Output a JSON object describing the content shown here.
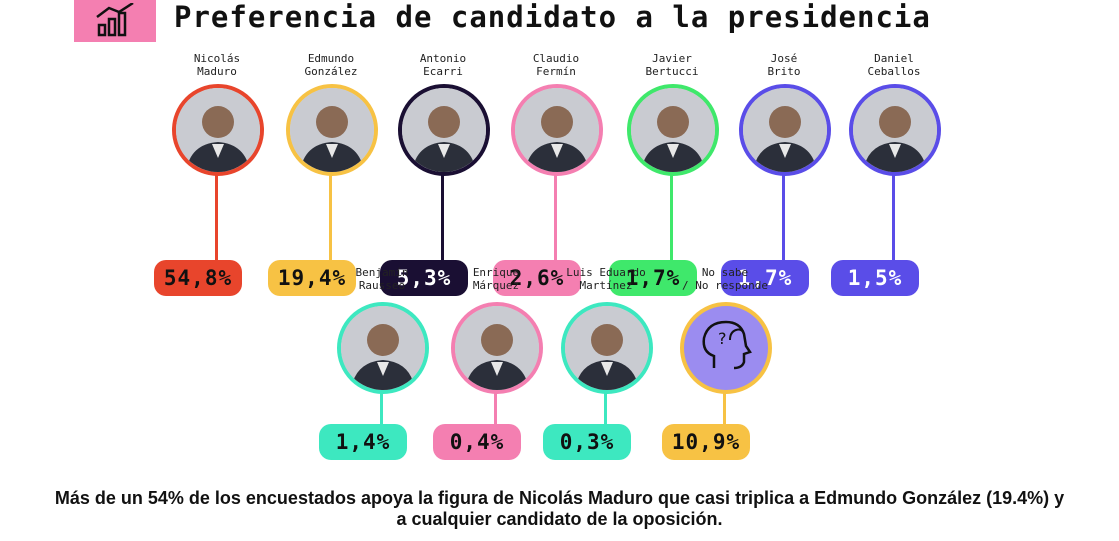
{
  "header": {
    "title": "Preferencia de candidato a la presidencia",
    "icon": "bar-chart-icon",
    "icon_bg": "#f47fb1"
  },
  "chart_data": {
    "type": "bar",
    "title": "Preferencia de candidato a la presidencia",
    "unit": "%",
    "categories": [
      "Nicolás Maduro",
      "Edmundo González",
      "Antonio Ecarri",
      "Claudio Fermín",
      "Javier Bertucci",
      "José Brito",
      "Daniel Ceballos",
      "Benjamín Rausseo",
      "Enrique Márquez",
      "Luis Eduardo Martínez",
      "No sabe / No responde"
    ],
    "values": [
      54.8,
      19.4,
      5.3,
      2.6,
      1.7,
      1.7,
      1.5,
      1.4,
      0.4,
      0.3,
      10.9
    ],
    "candidates": [
      {
        "name": [
          "Nicolás",
          "Maduro"
        ],
        "value": "54,8%",
        "color": "#e8452c",
        "dark_text": true
      },
      {
        "name": [
          "Edmundo",
          "González"
        ],
        "value": "19,4%",
        "color": "#f7c244",
        "dark_text": false
      },
      {
        "name": [
          "Antonio",
          "Ecarri"
        ],
        "value": "5,3%",
        "color": "#1a0f33",
        "dark_text": true
      },
      {
        "name": [
          "Claudio",
          "Fermín"
        ],
        "value": "2,6%",
        "color": "#f47fb1",
        "dark_text": false
      },
      {
        "name": [
          "Javier",
          "Bertucci"
        ],
        "value": "1,7%",
        "color": "#3fe86b",
        "dark_text": false
      },
      {
        "name": [
          "José",
          "Brito"
        ],
        "value": "1,7%",
        "color": "#5a4de8",
        "dark_text": false
      },
      {
        "name": [
          "Daniel",
          "Ceballos"
        ],
        "value": "1,5%",
        "color": "#5a4de8",
        "dark_text": true
      },
      {
        "name": [
          "Benjamín",
          "Rausseo"
        ],
        "value": "1,4%",
        "color": "#3de8c0",
        "dark_text": false
      },
      {
        "name": [
          "Enrique",
          "Márquez"
        ],
        "value": "0,4%",
        "color": "#f47fb1",
        "dark_text": false
      },
      {
        "name": [
          "Luis Eduardo",
          "Martínez"
        ],
        "value": "0,3%",
        "color": "#3de8c0",
        "dark_text": false
      },
      {
        "name": [
          "No sabe",
          "/ No responde"
        ],
        "value": "10,9%",
        "color": "#f7c244",
        "dark_text": false
      }
    ]
  },
  "caption": {
    "line1": "Más de un 54% de los encuestados apoya la figura de Nicolás Maduro que casi triplica a Edmundo González (19.4%) y",
    "line2": "a cualquier candidato de la oposición."
  }
}
